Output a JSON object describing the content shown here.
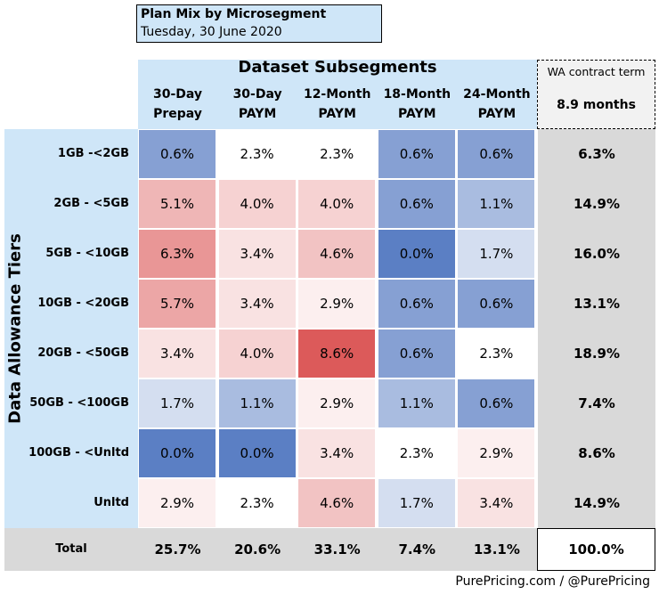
{
  "header": {
    "title": "Plan Mix by Microsegment",
    "date": "Tuesday, 30 June 2020"
  },
  "wa_contract": {
    "label": "WA contract term",
    "value": "8.9 months"
  },
  "footer": {
    "credit": "PurePricing.com / @PurePricing"
  },
  "chart_data": {
    "type": "heatmap",
    "x_title": "Dataset Subsegments",
    "y_title": "Data Allowance Tiers",
    "columns": [
      {
        "line1": "30-Day",
        "line2": "Prepay"
      },
      {
        "line1": "30-Day",
        "line2": "PAYM"
      },
      {
        "line1": "12-Month",
        "line2": "PAYM"
      },
      {
        "line1": "18-Month",
        "line2": "PAYM"
      },
      {
        "line1": "24-Month",
        "line2": "PAYM"
      }
    ],
    "rows": [
      "1GB -<2GB",
      "2GB - <5GB",
      "5GB - <10GB",
      "10GB - <20GB",
      "20GB - <50GB",
      "50GB - <100GB",
      "100GB - <Unltd",
      "Unltd"
    ],
    "values": [
      [
        0.6,
        2.3,
        2.3,
        0.6,
        0.6
      ],
      [
        5.1,
        4.0,
        4.0,
        0.6,
        1.1
      ],
      [
        6.3,
        3.4,
        4.6,
        0.0,
        1.7
      ],
      [
        5.7,
        3.4,
        2.9,
        0.6,
        0.6
      ],
      [
        3.4,
        4.0,
        8.6,
        0.6,
        2.3
      ],
      [
        1.7,
        1.1,
        2.9,
        1.1,
        0.6
      ],
      [
        0.0,
        0.0,
        3.4,
        2.3,
        2.9
      ],
      [
        2.9,
        2.3,
        4.6,
        1.7,
        3.4
      ]
    ],
    "row_totals": [
      6.3,
      14.9,
      16.0,
      13.1,
      18.9,
      7.4,
      8.6,
      14.9
    ],
    "total_label": "Total",
    "column_totals": [
      25.7,
      20.6,
      33.1,
      7.4,
      13.1
    ],
    "grand_total": 100.0,
    "unit": "%",
    "colors": {
      "low": "#5b7fc4",
      "mid": "#ffffff",
      "high": "#dc5a5a",
      "band_blue": "#cfe6f8",
      "band_gray": "#d9d9d9"
    }
  }
}
